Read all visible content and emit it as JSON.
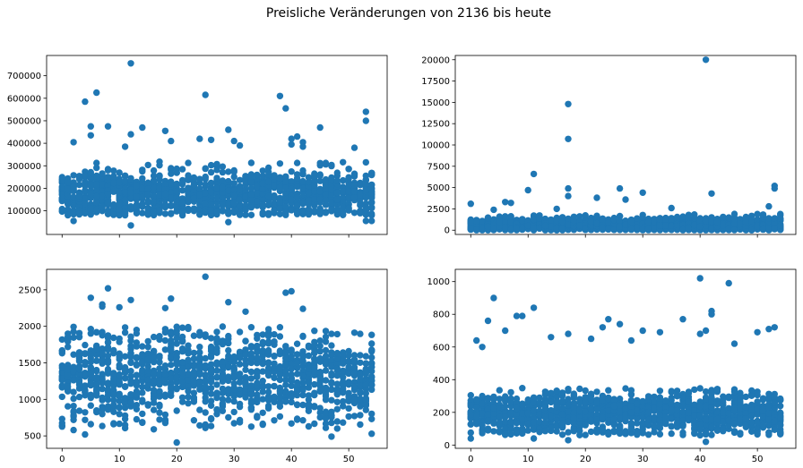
{
  "figure": {
    "suptitle": "Preisliche Veränderungen von 2136 bis heute"
  },
  "colors": {
    "marker": "#1f77b4",
    "axes": "#000000",
    "background": "#ffffff"
  },
  "chart_data": [
    {
      "type": "scatter",
      "panel": "top-left",
      "xlim": [
        -2.7,
        56.7
      ],
      "ylim": [
        -5000,
        790000
      ],
      "xticks": [
        0,
        10,
        20,
        30,
        40,
        50
      ],
      "xtick_labels_visible": false,
      "yticks": [
        100000,
        200000,
        300000,
        400000,
        500000,
        600000,
        700000
      ],
      "ytick_labels": [
        "100000",
        "200000",
        "300000",
        "400000",
        "500000",
        "600000",
        "700000"
      ],
      "bulk": {
        "y_range": [
          80000,
          320000
        ],
        "center": 170000,
        "points_per_x": 22
      },
      "notable_points": [
        {
          "x": 12,
          "y": 755000
        },
        {
          "x": 6,
          "y": 625000
        },
        {
          "x": 25,
          "y": 615000
        },
        {
          "x": 38,
          "y": 610000
        },
        {
          "x": 4,
          "y": 585000
        },
        {
          "x": 39,
          "y": 555000
        },
        {
          "x": 53,
          "y": 540000
        },
        {
          "x": 53,
          "y": 500000
        },
        {
          "x": 5,
          "y": 475000
        },
        {
          "x": 8,
          "y": 475000
        },
        {
          "x": 14,
          "y": 470000
        },
        {
          "x": 45,
          "y": 470000
        },
        {
          "x": 29,
          "y": 460000
        },
        {
          "x": 18,
          "y": 455000
        },
        {
          "x": 12,
          "y": 440000
        },
        {
          "x": 5,
          "y": 435000
        },
        {
          "x": 41,
          "y": 430000
        },
        {
          "x": 40,
          "y": 420000
        },
        {
          "x": 24,
          "y": 420000
        },
        {
          "x": 26,
          "y": 415000
        },
        {
          "x": 19,
          "y": 410000
        },
        {
          "x": 30,
          "y": 410000
        },
        {
          "x": 2,
          "y": 405000
        },
        {
          "x": 42,
          "y": 405000
        },
        {
          "x": 40,
          "y": 395000
        },
        {
          "x": 31,
          "y": 390000
        },
        {
          "x": 42,
          "y": 385000
        },
        {
          "x": 11,
          "y": 385000
        },
        {
          "x": 51,
          "y": 380000
        },
        {
          "x": 12,
          "y": 35000
        },
        {
          "x": 2,
          "y": 55000
        },
        {
          "x": 29,
          "y": 50000
        },
        {
          "x": 53,
          "y": 55000
        },
        {
          "x": 54,
          "y": 55000
        }
      ]
    },
    {
      "type": "scatter",
      "panel": "top-right",
      "xlim": [
        -2.7,
        56.7
      ],
      "ylim": [
        -500,
        20500
      ],
      "xticks": [
        0,
        10,
        20,
        30,
        40,
        50
      ],
      "xtick_labels_visible": false,
      "yticks": [
        0,
        2500,
        5000,
        7500,
        10000,
        12500,
        15000,
        17500,
        20000
      ],
      "ytick_labels": [
        "0",
        "2500",
        "5000",
        "7500",
        "10000",
        "12500",
        "15000",
        "17500",
        "20000"
      ],
      "bulk": {
        "y_range": [
          0,
          2000
        ],
        "center": 600,
        "points_per_x": 22
      },
      "notable_points": [
        {
          "x": 41,
          "y": 20000
        },
        {
          "x": 17,
          "y": 14800
        },
        {
          "x": 17,
          "y": 10700
        },
        {
          "x": 11,
          "y": 6600
        },
        {
          "x": 53,
          "y": 5200
        },
        {
          "x": 53,
          "y": 4900
        },
        {
          "x": 17,
          "y": 4900
        },
        {
          "x": 26,
          "y": 4900
        },
        {
          "x": 10,
          "y": 4700
        },
        {
          "x": 30,
          "y": 4400
        },
        {
          "x": 42,
          "y": 4300
        },
        {
          "x": 17,
          "y": 4000
        },
        {
          "x": 22,
          "y": 3800
        },
        {
          "x": 27,
          "y": 3600
        },
        {
          "x": 6,
          "y": 3300
        },
        {
          "x": 7,
          "y": 3200
        },
        {
          "x": 0,
          "y": 3100
        },
        {
          "x": 52,
          "y": 2800
        },
        {
          "x": 35,
          "y": 2600
        },
        {
          "x": 15,
          "y": 2500
        },
        {
          "x": 4,
          "y": 2400
        }
      ]
    },
    {
      "type": "scatter",
      "panel": "bottom-left",
      "xlim": [
        -2.7,
        56.7
      ],
      "ylim": [
        330,
        2780
      ],
      "xticks": [
        0,
        10,
        20,
        30,
        40,
        50
      ],
      "xtick_labels": [
        "0",
        "10",
        "20",
        "30",
        "40",
        "50"
      ],
      "yticks": [
        500,
        1000,
        1500,
        2000,
        2500
      ],
      "ytick_labels": [
        "500",
        "1000",
        "1500",
        "2000",
        "2500"
      ],
      "bulk": {
        "y_range": [
          600,
          2000
        ],
        "center": 1300,
        "points_per_x": 22
      },
      "notable_points": [
        {
          "x": 25,
          "y": 2680
        },
        {
          "x": 8,
          "y": 2520
        },
        {
          "x": 40,
          "y": 2480
        },
        {
          "x": 39,
          "y": 2460
        },
        {
          "x": 5,
          "y": 2390
        },
        {
          "x": 19,
          "y": 2380
        },
        {
          "x": 12,
          "y": 2360
        },
        {
          "x": 29,
          "y": 2330
        },
        {
          "x": 7,
          "y": 2300
        },
        {
          "x": 7,
          "y": 2270
        },
        {
          "x": 10,
          "y": 2260
        },
        {
          "x": 18,
          "y": 2250
        },
        {
          "x": 42,
          "y": 2240
        },
        {
          "x": 32,
          "y": 2200
        },
        {
          "x": 20,
          "y": 410
        },
        {
          "x": 4,
          "y": 520
        },
        {
          "x": 47,
          "y": 490
        },
        {
          "x": 54,
          "y": 530
        },
        {
          "x": 2,
          "y": 580
        },
        {
          "x": 16,
          "y": 590
        }
      ]
    },
    {
      "type": "scatter",
      "panel": "bottom-right",
      "xlim": [
        -2.7,
        56.7
      ],
      "ylim": [
        -20,
        1075
      ],
      "xticks": [
        0,
        10,
        20,
        30,
        40,
        50
      ],
      "xtick_labels": [
        "0",
        "10",
        "20",
        "30",
        "40",
        "50"
      ],
      "yticks": [
        0,
        200,
        400,
        600,
        800,
        1000
      ],
      "ytick_labels": [
        "0",
        "200",
        "400",
        "600",
        "800",
        "1000"
      ],
      "bulk": {
        "y_range": [
          60,
          350
        ],
        "center": 190,
        "points_per_x": 22
      },
      "notable_points": [
        {
          "x": 40,
          "y": 1020
        },
        {
          "x": 45,
          "y": 990
        },
        {
          "x": 4,
          "y": 900
        },
        {
          "x": 11,
          "y": 840
        },
        {
          "x": 42,
          "y": 820
        },
        {
          "x": 42,
          "y": 800
        },
        {
          "x": 8,
          "y": 790
        },
        {
          "x": 9,
          "y": 790
        },
        {
          "x": 24,
          "y": 770
        },
        {
          "x": 37,
          "y": 770
        },
        {
          "x": 3,
          "y": 760
        },
        {
          "x": 26,
          "y": 740
        },
        {
          "x": 23,
          "y": 720
        },
        {
          "x": 30,
          "y": 700
        },
        {
          "x": 41,
          "y": 700
        },
        {
          "x": 52,
          "y": 710
        },
        {
          "x": 53,
          "y": 720
        },
        {
          "x": 40,
          "y": 680
        },
        {
          "x": 33,
          "y": 690
        },
        {
          "x": 1,
          "y": 640
        },
        {
          "x": 6,
          "y": 700
        },
        {
          "x": 17,
          "y": 680
        },
        {
          "x": 21,
          "y": 650
        },
        {
          "x": 28,
          "y": 640
        },
        {
          "x": 50,
          "y": 690
        },
        {
          "x": 2,
          "y": 600
        },
        {
          "x": 14,
          "y": 660
        },
        {
          "x": 46,
          "y": 620
        },
        {
          "x": 0,
          "y": 40
        },
        {
          "x": 41,
          "y": 20
        },
        {
          "x": 11,
          "y": 40
        },
        {
          "x": 17,
          "y": 30
        }
      ]
    }
  ]
}
